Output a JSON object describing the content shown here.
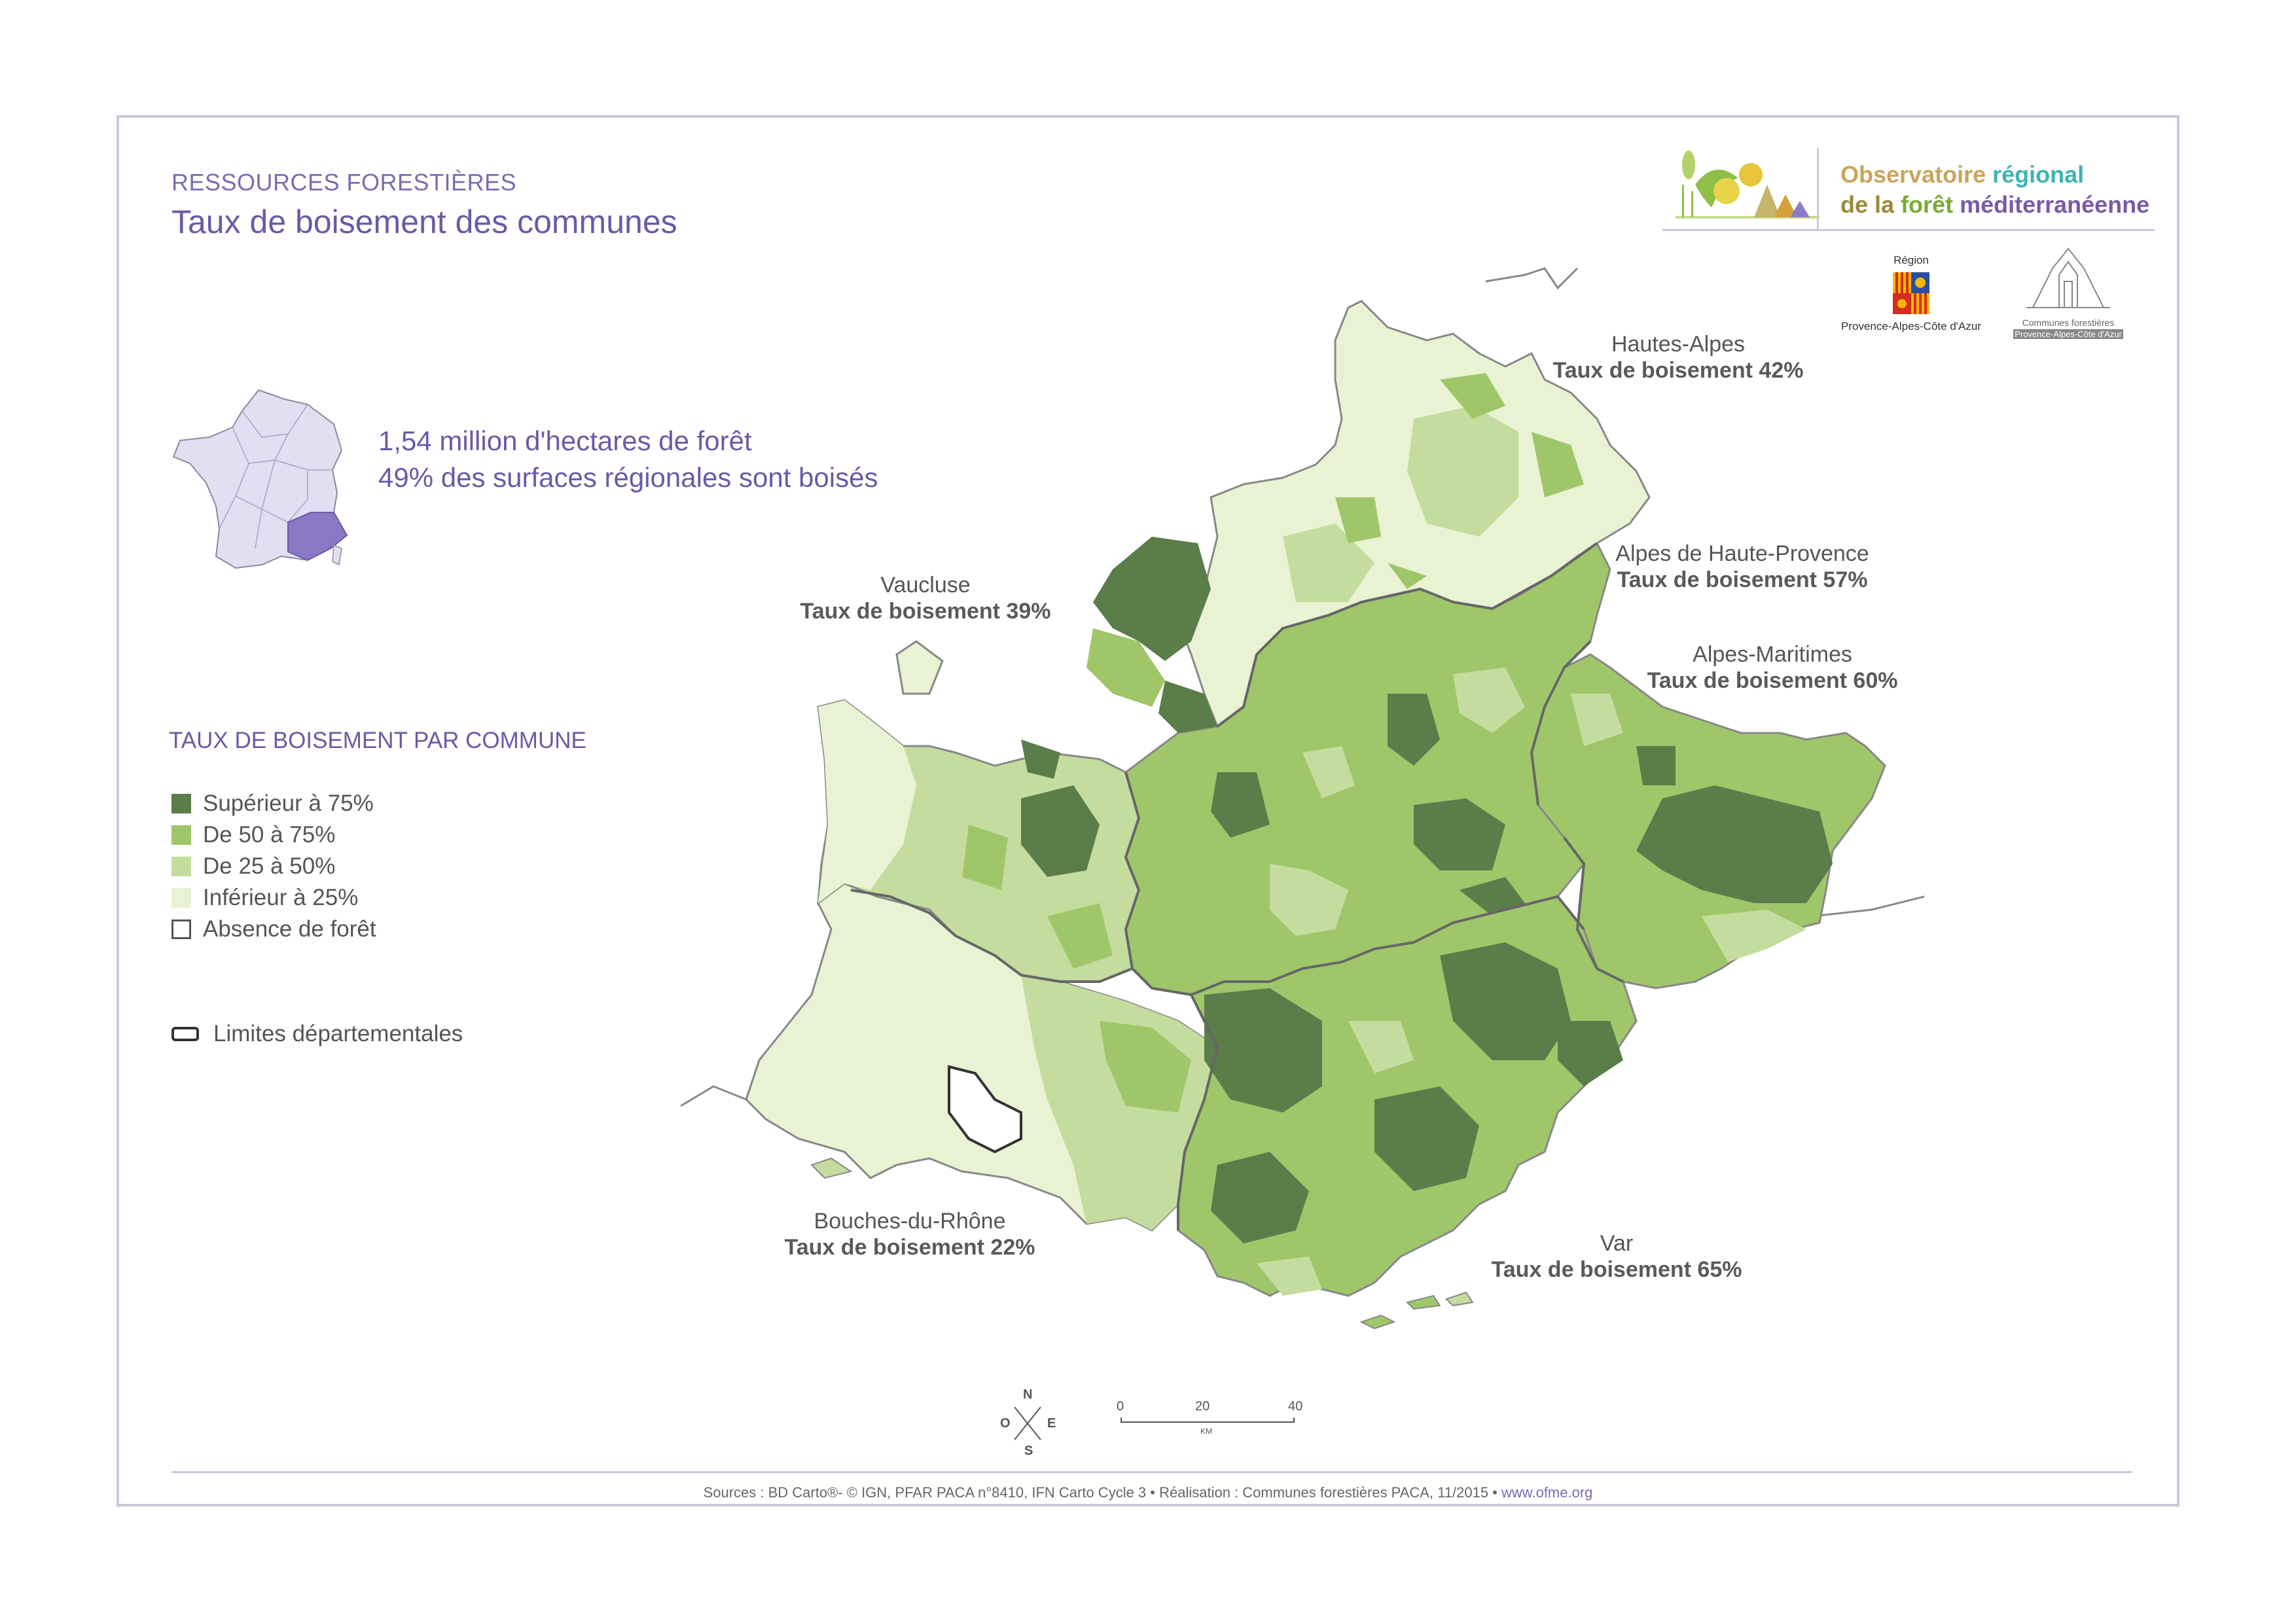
{
  "header": {
    "section_label": "RESSOURCES FORESTIÈRES",
    "title": "Taux de boisement des communes"
  },
  "logos": {
    "observatoire_line1_a": "Observatoire",
    "observatoire_line1_b": "régional",
    "observatoire_line2_a": "de la",
    "observatoire_line2_b": "forêt",
    "observatoire_line2_c": "méditerranéenne",
    "region_label_top": "Région",
    "region_label_bottom": "Provence-Alpes-Côte d'Azur",
    "communes_label_top": "Communes forestières",
    "communes_label_bottom": "Provence-Alpes-Côte d'Azur"
  },
  "stats": {
    "line1": "1,54 million d'hectares de forêt",
    "line2": "49% des surfaces régionales sont boisés"
  },
  "legend": {
    "title": "TAUX DE BOISEMENT PAR COMMUNE",
    "classes": [
      {
        "label": "Supérieur à 75%",
        "color": "#5a7d4a"
      },
      {
        "label": "De 50 à 75%",
        "color": "#9fc76a"
      },
      {
        "label": "De 25 à 50%",
        "color": "#c4dd9e"
      },
      {
        "label": "Inférieur à 25%",
        "color": "#e9f2d3"
      },
      {
        "label": "Absence de forêt",
        "color": "#ffffff"
      }
    ],
    "boundary_label": "Limites départementales"
  },
  "departments": [
    {
      "name": "Hautes-Alpes",
      "rate": "Taux de boisement 42%"
    },
    {
      "name": "Alpes de Haute-Provence",
      "rate": "Taux de boisement 57%"
    },
    {
      "name": "Vaucluse",
      "rate": "Taux de boisement 39%"
    },
    {
      "name": "Alpes-Maritimes",
      "rate": "Taux de boisement 60%"
    },
    {
      "name": "Bouches-du-Rhône",
      "rate": "Taux de boisement 22%"
    },
    {
      "name": "Var",
      "rate": "Taux de boisement 65%"
    }
  ],
  "compass": {
    "n": "N",
    "s": "S",
    "e": "E",
    "w": "O"
  },
  "scale": {
    "ticks": [
      "0",
      "20",
      "40"
    ],
    "unit": "KM"
  },
  "footer": {
    "sources": "Sources : BD Carto®- © IGN, PFAR PACA n°8410,  IFN Carto Cycle 3 • Réalisation : Communes forestières PACA, 11/2015 •",
    "url": "www.ofme.org"
  },
  "colors": {
    "accent_purple": "#6a5aa6",
    "frame": "#c9c9dc",
    "region_highlight": "#8a78c4",
    "france_fill": "#e3def2"
  }
}
